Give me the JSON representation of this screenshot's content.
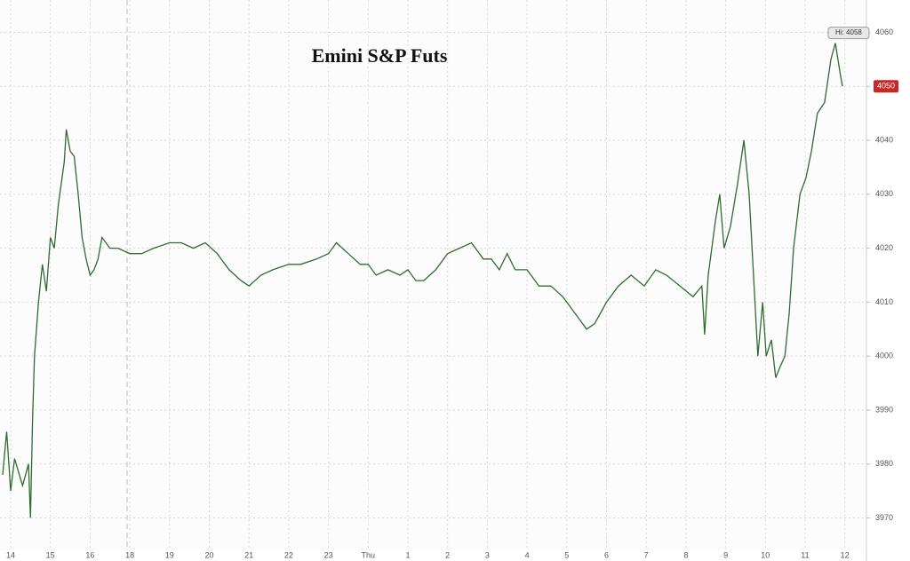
{
  "chart_data": {
    "type": "line",
    "title": "Emini S&P Futs",
    "x": [
      -0.2,
      -0.1,
      0.0,
      0.1,
      0.3,
      0.45,
      0.5,
      0.55,
      0.6,
      0.7,
      0.8,
      0.9,
      1.0,
      1.1,
      1.2,
      1.35,
      1.4,
      1.5,
      1.6,
      1.7,
      1.8,
      1.9,
      2.0,
      2.1,
      2.2,
      2.3,
      2.5,
      2.7,
      3.0,
      3.3,
      3.6,
      4.0,
      4.3,
      4.6,
      4.9,
      5.2,
      5.5,
      5.8,
      6.0,
      6.3,
      6.6,
      7.0,
      7.3,
      7.7,
      8.0,
      8.2,
      8.5,
      8.8,
      9.0,
      9.2,
      9.5,
      9.8,
      10.0,
      10.2,
      10.4,
      10.7,
      11.0,
      11.3,
      11.6,
      11.9,
      12.1,
      12.3,
      12.5,
      12.7,
      13.0,
      13.3,
      13.6,
      13.9,
      14.1,
      14.3,
      14.5,
      14.7,
      15.0,
      15.3,
      15.62,
      15.95,
      16.24,
      16.51,
      16.85,
      17.18,
      17.4,
      17.47,
      17.56,
      17.74,
      17.85,
      17.96,
      18.12,
      18.3,
      18.46,
      18.59,
      18.7,
      18.81,
      18.93,
      19.02,
      19.15,
      19.26,
      19.37,
      19.49,
      19.6,
      19.71,
      19.87,
      20.02,
      20.16,
      20.31,
      20.49,
      20.65,
      20.76,
      20.89,
      20.94
    ],
    "values": [
      3978,
      3986,
      3975,
      3981,
      3976,
      3980,
      3970,
      3988,
      4000,
      4010,
      4017,
      4012,
      4022,
      4020,
      4028,
      4036,
      4042,
      4038,
      4037,
      4030,
      4022,
      4018,
      4015,
      4016,
      4018,
      4022,
      4020,
      4020,
      4019,
      4019,
      4020,
      4021,
      4021,
      4020,
      4021,
      4019,
      4016,
      4014,
      4013,
      4015,
      4016,
      4017,
      4017,
      4018,
      4019,
      4021,
      4019,
      4017,
      4017,
      4015,
      4016,
      4015,
      4016,
      4014,
      4014,
      4016,
      4019,
      4020,
      4021,
      4018,
      4018,
      4016,
      4019,
      4016,
      4016,
      4013,
      4013,
      4011,
      4009,
      4007,
      4005,
      4006,
      4010,
      4013,
      4015,
      4013,
      4016,
      4015,
      4013,
      4011,
      4013,
      4004,
      4015,
      4025,
      4030,
      4020,
      4024,
      4032,
      4040,
      4030,
      4015,
      4000,
      4010,
      4000,
      4003,
      3996,
      3998,
      4000,
      4008,
      4020,
      4030,
      4033,
      4038,
      4045,
      4047,
      4055,
      4058,
      4052,
      4050
    ],
    "color": "#2f6b2f",
    "xlim": [
      -0.268,
      21.544
    ],
    "xticks": [
      {
        "value": 0,
        "label": "14"
      },
      {
        "value": 1,
        "label": "15"
      },
      {
        "value": 2,
        "label": "16"
      },
      {
        "value": 3,
        "label": "18"
      },
      {
        "value": 4,
        "label": "19"
      },
      {
        "value": 5,
        "label": "20"
      },
      {
        "value": 6,
        "label": "21"
      },
      {
        "value": 7,
        "label": "22"
      },
      {
        "value": 8,
        "label": "23"
      },
      {
        "value": 9,
        "label": "Thu"
      },
      {
        "value": 10,
        "label": "1"
      },
      {
        "value": 11,
        "label": "2"
      },
      {
        "value": 12,
        "label": "3"
      },
      {
        "value": 13,
        "label": "4"
      },
      {
        "value": 14,
        "label": "5"
      },
      {
        "value": 15,
        "label": "6"
      },
      {
        "value": 16,
        "label": "7"
      },
      {
        "value": 17,
        "label": "8"
      },
      {
        "value": 18,
        "label": "9"
      },
      {
        "value": 19,
        "label": "10"
      },
      {
        "value": 20,
        "label": "11"
      },
      {
        "value": 21,
        "label": "12"
      }
    ],
    "ylim": [
      3964,
      4066
    ],
    "yticks": [
      3970,
      3980,
      3990,
      4000,
      4010,
      4020,
      4030,
      4040,
      4050,
      4060
    ],
    "grid": true,
    "high_label": "Hi: 4058",
    "last_price": 4050
  }
}
